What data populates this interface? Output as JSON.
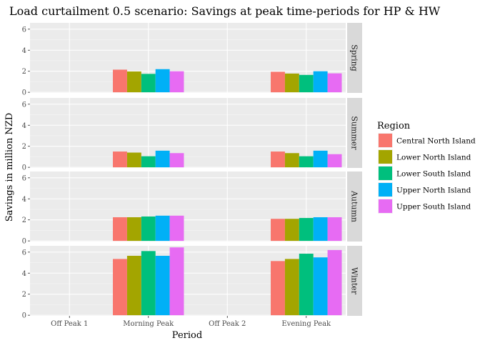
{
  "chart_data": {
    "type": "bar",
    "title": "Load curtailment 0.5 scenario: Savings at peak time-periods for HP & HW",
    "xlabel": "Period",
    "ylabel": "Savings in million NZD",
    "categories": [
      "Off Peak 1",
      "Morning Peak",
      "Off Peak 2",
      "Evening Peak"
    ],
    "ylim": [
      0,
      6.6
    ],
    "yticks": [
      0,
      2,
      4,
      6
    ],
    "grid": true,
    "legend": {
      "title": "Region",
      "position": "right",
      "entries": [
        "Central North Island",
        "Lower North Island",
        "Lower South Island",
        "Upper North Island",
        "Upper South Island"
      ]
    },
    "colors": [
      "#F8766D",
      "#A3A500",
      "#00BF7D",
      "#00B0F6",
      "#E76BF3"
    ],
    "facets": [
      {
        "label": "Spring",
        "series": [
          {
            "name": "Central North Island",
            "values": [
              0,
              2.15,
              0,
              1.95
            ]
          },
          {
            "name": "Lower North Island",
            "values": [
              0,
              1.98,
              0,
              1.78
            ]
          },
          {
            "name": "Lower South Island",
            "values": [
              0,
              1.75,
              0,
              1.65
            ]
          },
          {
            "name": "Upper North Island",
            "values": [
              0,
              2.2,
              0,
              2.0
            ]
          },
          {
            "name": "Upper South Island",
            "values": [
              0,
              2.0,
              0,
              1.8
            ]
          }
        ]
      },
      {
        "label": "Summer",
        "series": [
          {
            "name": "Central North Island",
            "values": [
              0,
              1.5,
              0,
              1.5
            ]
          },
          {
            "name": "Lower North Island",
            "values": [
              0,
              1.4,
              0,
              1.35
            ]
          },
          {
            "name": "Lower South Island",
            "values": [
              0,
              1.05,
              0,
              1.05
            ]
          },
          {
            "name": "Upper North Island",
            "values": [
              0,
              1.58,
              0,
              1.58
            ]
          },
          {
            "name": "Upper South Island",
            "values": [
              0,
              1.35,
              0,
              1.25
            ]
          }
        ]
      },
      {
        "label": "Autumn",
        "series": [
          {
            "name": "Central North Island",
            "values": [
              0,
              2.25,
              0,
              2.1
            ]
          },
          {
            "name": "Lower North Island",
            "values": [
              0,
              2.25,
              0,
              2.1
            ]
          },
          {
            "name": "Lower South Island",
            "values": [
              0,
              2.32,
              0,
              2.18
            ]
          },
          {
            "name": "Upper North Island",
            "values": [
              0,
              2.4,
              0,
              2.25
            ]
          },
          {
            "name": "Upper South Island",
            "values": [
              0,
              2.4,
              0,
              2.25
            ]
          }
        ]
      },
      {
        "label": "Winter",
        "series": [
          {
            "name": "Central North Island",
            "values": [
              0,
              5.35,
              0,
              5.15
            ]
          },
          {
            "name": "Lower North Island",
            "values": [
              0,
              5.65,
              0,
              5.35
            ]
          },
          {
            "name": "Lower South Island",
            "values": [
              0,
              6.1,
              0,
              5.85
            ]
          },
          {
            "name": "Upper North Island",
            "values": [
              0,
              5.65,
              0,
              5.5
            ]
          },
          {
            "name": "Upper South Island",
            "values": [
              0,
              6.45,
              0,
              6.2
            ]
          }
        ]
      }
    ]
  }
}
